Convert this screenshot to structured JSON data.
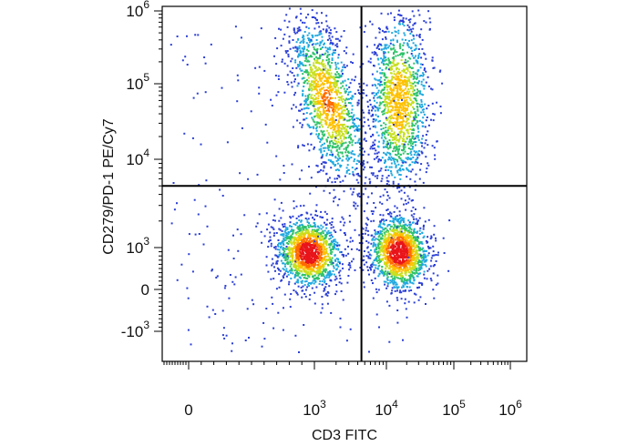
{
  "chart_data": {
    "type": "scatter",
    "plot_style": "pseudocolor density dot plot with quadrant gates",
    "xlabel": "CD3 FITC",
    "ylabel": "CD279/PD-1 PE/Cy7",
    "x_scale": "biexponential",
    "y_scale": "biexponential",
    "x_ticks": [
      {
        "value": 0,
        "label": "0"
      },
      {
        "value": 1000,
        "label": "10",
        "sup": "3"
      },
      {
        "value": 10000,
        "label": "10",
        "sup": "4"
      },
      {
        "value": 100000,
        "label": "10",
        "sup": "5"
      },
      {
        "value": 1000000,
        "label": "10",
        "sup": "6"
      }
    ],
    "y_ticks": [
      {
        "value": -1000,
        "label": "-10",
        "sup": "3"
      },
      {
        "value": 0,
        "label": "0"
      },
      {
        "value": 1000,
        "label": "10",
        "sup": "3"
      },
      {
        "value": 10000,
        "label": "10",
        "sup": "4"
      },
      {
        "value": 100000,
        "label": "10",
        "sup": "5"
      },
      {
        "value": 1000000,
        "label": "10",
        "sup": "6"
      }
    ],
    "quadrant_gates": {
      "x": 4500,
      "y": 5000
    },
    "populations": [
      {
        "name": "CD3- PD-1- (lower-left)",
        "x_center": 950,
        "y_center": 900,
        "density": "high"
      },
      {
        "name": "CD3+ PD-1- (lower-right)",
        "x_center": 15000,
        "y_center": 900,
        "density": "high"
      },
      {
        "name": "CD3- PD-1+ (upper-left)",
        "x_center": 1500,
        "y_center": 60000,
        "density": "medium"
      },
      {
        "name": "CD3+ PD-1+ (upper-right)",
        "x_center": 15000,
        "y_center": 60000,
        "density": "medium"
      }
    ],
    "density_colors": [
      "#2b3fd6",
      "#1fa8e0",
      "#2fc26a",
      "#c8e020",
      "#ffc000",
      "#ff6a00",
      "#e8141a"
    ],
    "grid": false,
    "legend": "none"
  }
}
